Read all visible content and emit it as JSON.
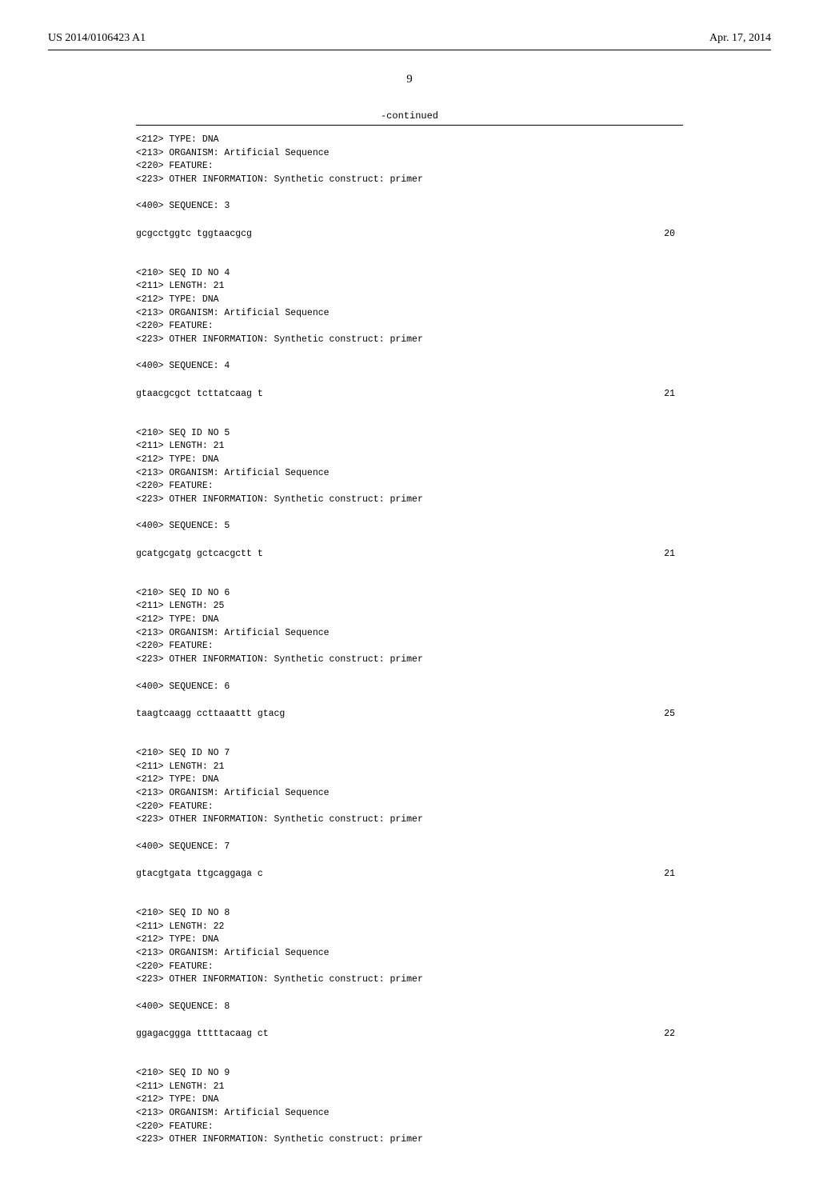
{
  "header": {
    "publication_number": "US 2014/0106423 A1",
    "publication_date": "Apr. 17, 2014"
  },
  "page_number": "9",
  "continued_label": "-continued",
  "seq_listing": {
    "preamble_lines": [
      "<212> TYPE: DNA",
      "<213> ORGANISM: Artificial Sequence",
      "<220> FEATURE:",
      "<223> OTHER INFORMATION: Synthetic construct: primer",
      "",
      "<400> SEQUENCE: 3"
    ],
    "preamble_sequence": {
      "seq": "gcgcctggtc tggtaacgcg",
      "len": "20"
    },
    "entries": [
      {
        "header_lines": [
          "<210> SEQ ID NO 4",
          "<211> LENGTH: 21",
          "<212> TYPE: DNA",
          "<213> ORGANISM: Artificial Sequence",
          "<220> FEATURE:",
          "<223> OTHER INFORMATION: Synthetic construct: primer",
          "",
          "<400> SEQUENCE: 4"
        ],
        "sequence": {
          "seq": "gtaacgcgct tcttatcaag t",
          "len": "21"
        }
      },
      {
        "header_lines": [
          "<210> SEQ ID NO 5",
          "<211> LENGTH: 21",
          "<212> TYPE: DNA",
          "<213> ORGANISM: Artificial Sequence",
          "<220> FEATURE:",
          "<223> OTHER INFORMATION: Synthetic construct: primer",
          "",
          "<400> SEQUENCE: 5"
        ],
        "sequence": {
          "seq": "gcatgcgatg gctcacgctt t",
          "len": "21"
        }
      },
      {
        "header_lines": [
          "<210> SEQ ID NO 6",
          "<211> LENGTH: 25",
          "<212> TYPE: DNA",
          "<213> ORGANISM: Artificial Sequence",
          "<220> FEATURE:",
          "<223> OTHER INFORMATION: Synthetic construct: primer",
          "",
          "<400> SEQUENCE: 6"
        ],
        "sequence": {
          "seq": "taagtcaagg ccttaaattt gtacg",
          "len": "25"
        }
      },
      {
        "header_lines": [
          "<210> SEQ ID NO 7",
          "<211> LENGTH: 21",
          "<212> TYPE: DNA",
          "<213> ORGANISM: Artificial Sequence",
          "<220> FEATURE:",
          "<223> OTHER INFORMATION: Synthetic construct: primer",
          "",
          "<400> SEQUENCE: 7"
        ],
        "sequence": {
          "seq": "gtacgtgata ttgcaggaga c",
          "len": "21"
        }
      },
      {
        "header_lines": [
          "<210> SEQ ID NO 8",
          "<211> LENGTH: 22",
          "<212> TYPE: DNA",
          "<213> ORGANISM: Artificial Sequence",
          "<220> FEATURE:",
          "<223> OTHER INFORMATION: Synthetic construct: primer",
          "",
          "<400> SEQUENCE: 8"
        ],
        "sequence": {
          "seq": "ggagacggga tttttacaag ct",
          "len": "22"
        }
      },
      {
        "header_lines": [
          "<210> SEQ ID NO 9",
          "<211> LENGTH: 21",
          "<212> TYPE: DNA",
          "<213> ORGANISM: Artificial Sequence",
          "<220> FEATURE:",
          "<223> OTHER INFORMATION: Synthetic construct: primer"
        ],
        "sequence": null
      }
    ]
  }
}
